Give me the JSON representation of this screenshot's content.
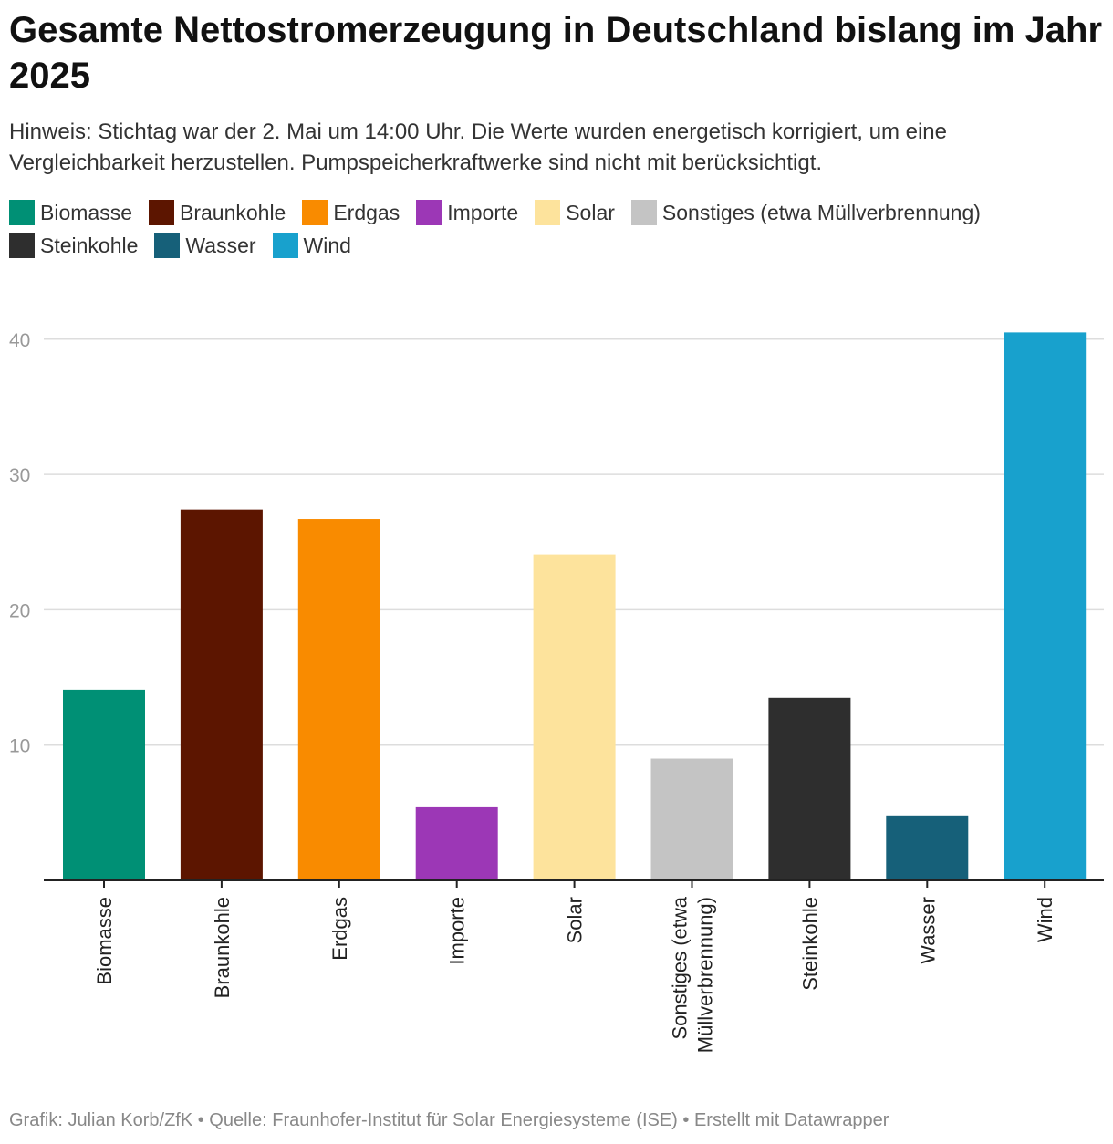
{
  "chart_data": {
    "type": "bar",
    "title": "Gesamte Nettostromerzeugung in Deutschland bislang im Jahr 2025",
    "subtitle": "Hinweis: Stichtag war der 2. Mai um 14:00 Uhr. Die Werte wurden energetisch korrigiert, um eine Vergleichbarkeit herzustellen. Pumpspeicherkraftwerke sind nicht mit berücksichtigt.",
    "categories": [
      "Biomasse",
      "Braunkohle",
      "Erdgas",
      "Importe",
      "Solar",
      "Sonstiges (etwa Müllverbrennung)",
      "Steinkohle",
      "Wasser",
      "Wind"
    ],
    "category_tick_lines": [
      [
        "Biomasse"
      ],
      [
        "Braunkohle"
      ],
      [
        "Erdgas"
      ],
      [
        "Importe"
      ],
      [
        "Solar"
      ],
      [
        "Sonstiges (etwa",
        "Müllverbrennung)"
      ],
      [
        "Steinkohle"
      ],
      [
        "Wasser"
      ],
      [
        "Wind"
      ]
    ],
    "values": [
      14.1,
      27.4,
      26.7,
      5.4,
      24.1,
      9.0,
      13.5,
      4.8,
      40.5
    ],
    "colors": [
      "#009075",
      "#5c1500",
      "#f98b00",
      "#9c37b6",
      "#fde39c",
      "#c4c4c4",
      "#2e2e2e",
      "#166079",
      "#18a1cd"
    ],
    "legend": [
      {
        "label": "Biomasse",
        "color": "#009075"
      },
      {
        "label": "Braunkohle",
        "color": "#5c1500"
      },
      {
        "label": "Erdgas",
        "color": "#f98b00"
      },
      {
        "label": "Importe",
        "color": "#9c37b6"
      },
      {
        "label": "Solar",
        "color": "#fde39c"
      },
      {
        "label": "Sonstiges (etwa Müllverbrennung)",
        "color": "#c4c4c4"
      },
      {
        "label": "Steinkohle",
        "color": "#2e2e2e"
      },
      {
        "label": "Wasser",
        "color": "#166079"
      },
      {
        "label": "Wind",
        "color": "#18a1cd"
      }
    ],
    "yticks": [
      10,
      20,
      30,
      40
    ],
    "ylim": [
      0,
      40.5
    ],
    "xlabel": "",
    "ylabel": "",
    "grid": true,
    "legend_position": "top"
  },
  "footer": "Grafik: Julian Korb/ZfK • Quelle: Fraunhofer-Institut für Solar Energiesysteme (ISE) • Erstellt mit Datawrapper"
}
